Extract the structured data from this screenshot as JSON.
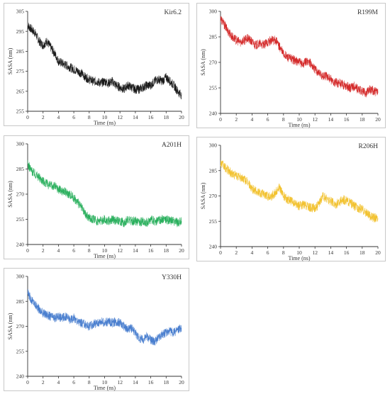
{
  "chart_data": [
    {
      "type": "line",
      "title": "Kir6.2",
      "xlabel": "Time (ns)",
      "ylabel": "SASA (nm)",
      "xlim": [
        0,
        20
      ],
      "ylim": [
        255,
        305
      ],
      "xticks": [
        0,
        2,
        4,
        6,
        8,
        10,
        12,
        14,
        16,
        18,
        20
      ],
      "yticks": [
        255,
        265,
        275,
        285,
        295,
        305
      ],
      "color": "#1a1a1a",
      "series": [
        {
          "x": [
            0,
            0.5,
            1,
            1.5,
            2,
            2.5,
            3,
            3.5,
            4,
            4.5,
            5,
            5.5,
            6,
            6.5,
            7,
            7.5,
            8,
            8.5,
            9,
            9.5,
            10,
            10.5,
            11,
            11.5,
            12,
            12.5,
            13,
            13.5,
            14,
            14.5,
            15,
            15.5,
            16,
            16.5,
            17,
            17.5,
            18,
            18.5,
            19,
            19.5,
            20
          ],
          "values": [
            298,
            296,
            294,
            290,
            288,
            290,
            287,
            284,
            280,
            279,
            278,
            277,
            276,
            275,
            274,
            272,
            271,
            270,
            270,
            269,
            270,
            269,
            270,
            268,
            267,
            266,
            268,
            267,
            266,
            266,
            267,
            268,
            268,
            270,
            271,
            270,
            272,
            270,
            268,
            265,
            263
          ]
        }
      ]
    },
    {
      "type": "line",
      "title": "R199M",
      "xlabel": "Time (ns)",
      "ylabel": "SASA (nm)",
      "xlim": [
        0,
        20
      ],
      "ylim": [
        240,
        300
      ],
      "xticks": [
        0,
        2,
        4,
        6,
        8,
        10,
        12,
        14,
        16,
        18,
        20
      ],
      "yticks": [
        240,
        255,
        270,
        285,
        300
      ],
      "color": "#d42a2a",
      "series": [
        {
          "x": [
            0,
            0.5,
            1,
            1.5,
            2,
            2.5,
            3,
            3.5,
            4,
            4.5,
            5,
            5.5,
            6,
            6.5,
            7,
            7.5,
            8,
            8.5,
            9,
            9.5,
            10,
            10.5,
            11,
            11.5,
            12,
            12.5,
            13,
            13.5,
            14,
            14.5,
            15,
            15.5,
            16,
            16.5,
            17,
            17.5,
            18,
            18.5,
            19,
            19.5,
            20
          ],
          "values": [
            296,
            292,
            288,
            285,
            283,
            282,
            283,
            284,
            282,
            280,
            281,
            280,
            282,
            283,
            283,
            279,
            275,
            273,
            272,
            271,
            270,
            269,
            271,
            269,
            266,
            264,
            262,
            262,
            260,
            258,
            258,
            257,
            256,
            255,
            256,
            254,
            253,
            252,
            254,
            253,
            252
          ]
        }
      ]
    },
    {
      "type": "line",
      "title": "A201H",
      "xlabel": "Time (ns)",
      "ylabel": "SASA (nm)",
      "xlim": [
        0,
        20
      ],
      "ylim": [
        240,
        300
      ],
      "xticks": [
        0,
        2,
        4,
        6,
        8,
        10,
        12,
        14,
        16,
        18,
        20
      ],
      "yticks": [
        240,
        255,
        270,
        285,
        300
      ],
      "color": "#2bb05e",
      "series": [
        {
          "x": [
            0,
            0.5,
            1,
            1.5,
            2,
            2.5,
            3,
            3.5,
            4,
            4.5,
            5,
            5.5,
            6,
            6.5,
            7,
            7.5,
            8,
            8.5,
            9,
            9.5,
            10,
            10.5,
            11,
            11.5,
            12,
            12.5,
            13,
            13.5,
            14,
            14.5,
            15,
            15.5,
            16,
            16.5,
            17,
            17.5,
            18,
            18.5,
            19,
            19.5,
            20
          ],
          "values": [
            288,
            284,
            282,
            280,
            278,
            276,
            275,
            275,
            273,
            272,
            271,
            270,
            268,
            265,
            262,
            258,
            256,
            255,
            254,
            254,
            255,
            254,
            255,
            254,
            254,
            253,
            255,
            254,
            254,
            253,
            254,
            253,
            255,
            254,
            254,
            255,
            255,
            254,
            254,
            253,
            254
          ]
        }
      ]
    },
    {
      "type": "line",
      "title": "R206H",
      "xlabel": "Time (ns)",
      "ylabel": "SASA (nm)",
      "xlim": [
        0,
        20
      ],
      "ylim": [
        240,
        300
      ],
      "xticks": [
        0,
        2,
        4,
        6,
        8,
        10,
        12,
        14,
        16,
        18,
        20
      ],
      "yticks": [
        240,
        255,
        270,
        285,
        300
      ],
      "color": "#f2c230",
      "series": [
        {
          "x": [
            0,
            0.5,
            1,
            1.5,
            2,
            2.5,
            3,
            3.5,
            4,
            4.5,
            5,
            5.5,
            6,
            6.5,
            7,
            7.5,
            8,
            8.5,
            9,
            9.5,
            10,
            10.5,
            11,
            11.5,
            12,
            12.5,
            13,
            13.5,
            14,
            14.5,
            15,
            15.5,
            16,
            16.5,
            17,
            17.5,
            18,
            18.5,
            19,
            19.5,
            20
          ],
          "values": [
            290,
            287,
            285,
            283,
            282,
            281,
            280,
            278,
            274,
            273,
            272,
            271,
            270,
            270,
            272,
            275,
            270,
            268,
            267,
            265,
            264,
            265,
            264,
            263,
            263,
            265,
            270,
            268,
            267,
            265,
            266,
            268,
            267,
            266,
            264,
            263,
            262,
            260,
            258,
            257,
            257
          ]
        }
      ]
    },
    {
      "type": "line",
      "title": "Y330H",
      "xlabel": "Time (ns)",
      "ylabel": "SASA (nm)",
      "xlim": [
        0,
        20
      ],
      "ylim": [
        240,
        300
      ],
      "xticks": [
        0,
        2,
        4,
        6,
        8,
        10,
        12,
        14,
        16,
        18,
        20
      ],
      "yticks": [
        240,
        255,
        270,
        285,
        300
      ],
      "color": "#4a7fcf",
      "series": [
        {
          "x": [
            0,
            0.5,
            1,
            1.5,
            2,
            2.5,
            3,
            3.5,
            4,
            4.5,
            5,
            5.5,
            6,
            6.5,
            7,
            7.5,
            8,
            8.5,
            9,
            9.5,
            10,
            10.5,
            11,
            11.5,
            12,
            12.5,
            13,
            13.5,
            14,
            14.5,
            15,
            15.5,
            16,
            16.5,
            17,
            17.5,
            18,
            18.5,
            19,
            19.5,
            20
          ],
          "values": [
            290,
            286,
            283,
            280,
            278,
            277,
            276,
            275,
            276,
            275,
            276,
            274,
            275,
            273,
            272,
            271,
            270,
            271,
            272,
            273,
            272,
            273,
            272,
            273,
            272,
            270,
            268,
            269,
            266,
            263,
            262,
            264,
            262,
            261,
            263,
            265,
            266,
            267,
            266,
            268,
            269
          ]
        }
      ]
    }
  ]
}
